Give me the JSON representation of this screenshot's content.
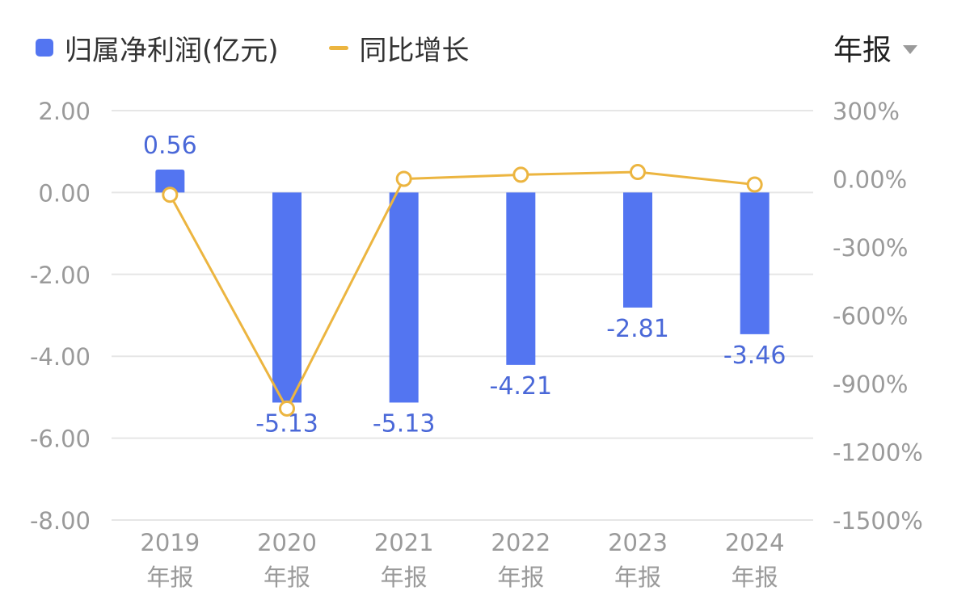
{
  "legend": {
    "bar_label": "归属净利润(亿元)",
    "line_label": "同比增长",
    "bar_color": "#5375f1",
    "line_color": "#ecb540"
  },
  "period_selector": {
    "label": "年报"
  },
  "chart_data": {
    "type": "bar",
    "categories": [
      "2019",
      "2020",
      "2021",
      "2022",
      "2023",
      "2024"
    ],
    "category_sublabel": "年报",
    "series": [
      {
        "name": "归属净利润(亿元)",
        "type": "bar",
        "axis": "left",
        "values": [
          0.56,
          -5.13,
          -5.13,
          -4.21,
          -2.81,
          -3.46
        ],
        "labels": [
          "0.56",
          "-5.13",
          "-5.13",
          "-4.21",
          "-2.81",
          "-3.46"
        ]
      },
      {
        "name": "同比增长",
        "type": "line",
        "axis": "right",
        "values": [
          -70,
          -1010,
          0,
          18,
          30,
          -25
        ]
      }
    ],
    "y_left": {
      "min": -8,
      "max": 2,
      "ticks": [
        "2.00",
        "0.00",
        "-2.00",
        "-4.00",
        "-6.00",
        "-8.00"
      ]
    },
    "y_right": {
      "min": -1500,
      "max": 300,
      "ticks": [
        "300%",
        "0.00%",
        "-300%",
        "-600%",
        "-900%",
        "-1200%",
        "-1500%"
      ]
    },
    "grid": true,
    "legend_position": "top-left"
  }
}
